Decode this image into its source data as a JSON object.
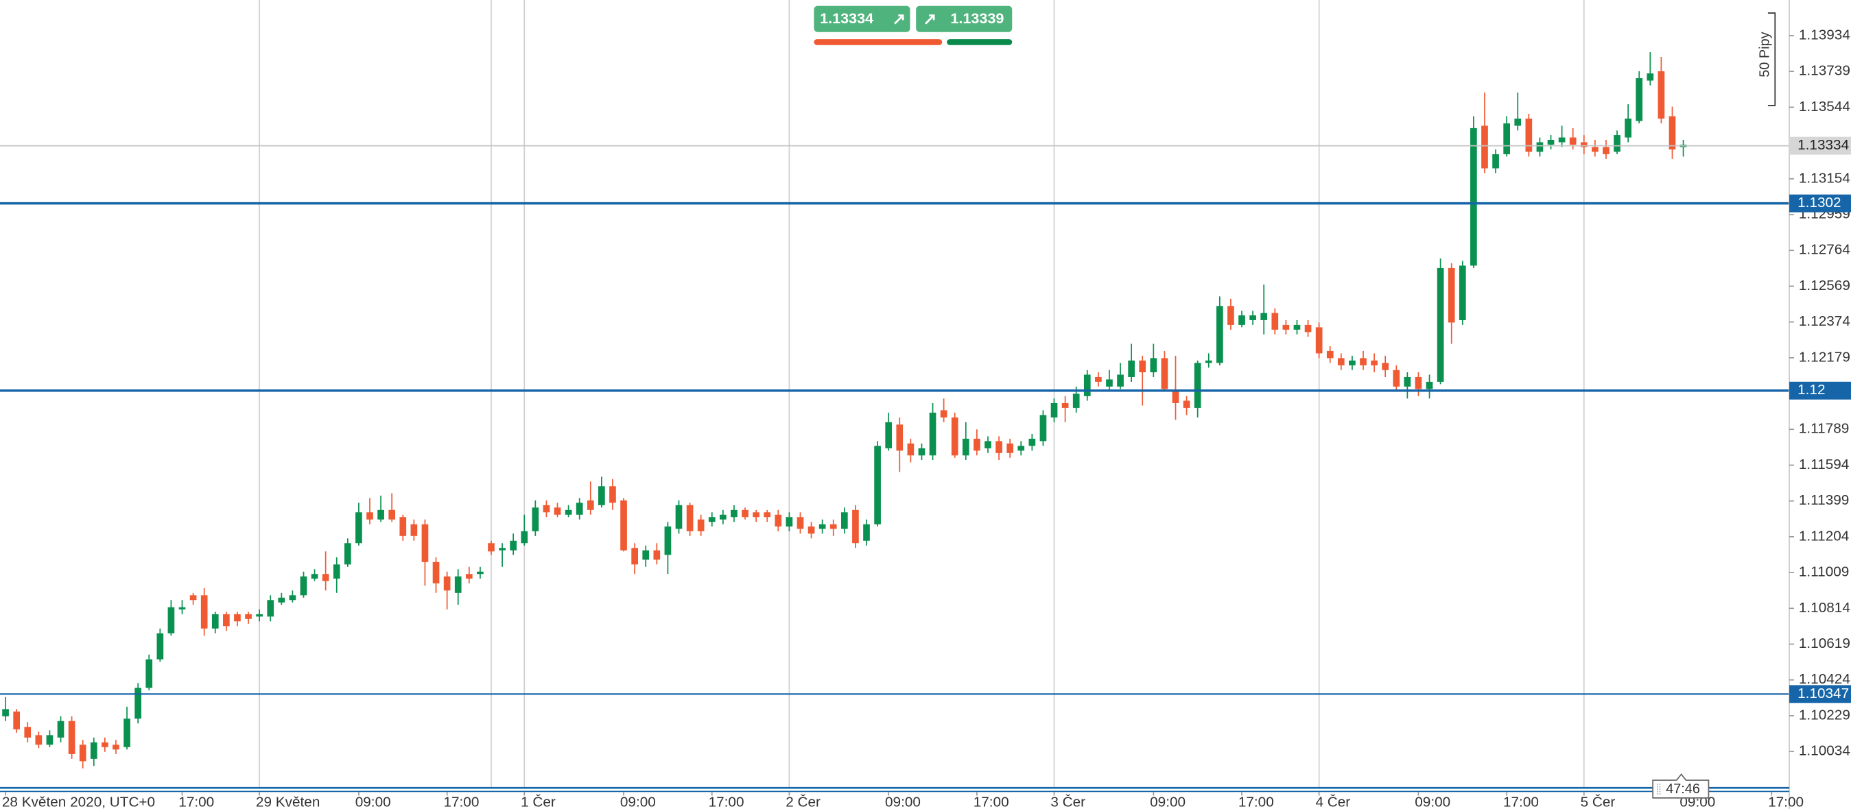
{
  "chart_data": {
    "type": "candlestick",
    "up_color": "#0a9150",
    "down_color": "#f05a33",
    "xlim": [
      -0.5,
      161.6
    ],
    "ylim": [
      1.09839,
      1.14128
    ],
    "xgrid": [
      23,
      44,
      47,
      71,
      95,
      119,
      143
    ],
    "xticks": [
      {
        "value": 0,
        "label": "28 Květen 2020, UTC+0"
      },
      {
        "value": 16,
        "label": "17:00"
      },
      {
        "value": 23,
        "label": "29 Květen"
      },
      {
        "value": 32,
        "label": "09:00"
      },
      {
        "value": 40,
        "label": "17:00"
      },
      {
        "value": 47,
        "label": "1 Čer"
      },
      {
        "value": 56,
        "label": "09:00"
      },
      {
        "value": 64,
        "label": "17:00"
      },
      {
        "value": 71,
        "label": "2 Čer"
      },
      {
        "value": 80,
        "label": "09:00"
      },
      {
        "value": 88,
        "label": "17:00"
      },
      {
        "value": 95,
        "label": "3 Čer"
      },
      {
        "value": 104,
        "label": "09:00"
      },
      {
        "value": 112,
        "label": "17:00"
      },
      {
        "value": 119,
        "label": "4 Čer"
      },
      {
        "value": 128,
        "label": "09:00"
      },
      {
        "value": 136,
        "label": "17:00"
      },
      {
        "value": 143,
        "label": "5 Čer"
      },
      {
        "value": 152,
        "label": "09:00"
      },
      {
        "value": 160,
        "label": "17:00"
      }
    ],
    "yticks": [
      1.13934,
      1.13739,
      1.13544,
      1.13154,
      1.12959,
      1.12764,
      1.12569,
      1.12374,
      1.12179,
      1.11789,
      1.11594,
      1.11399,
      1.11204,
      1.11009,
      1.10814,
      1.10619,
      1.10424,
      1.10229,
      1.10034
    ],
    "hlines": [
      1.1302,
      1.12,
      1.10347
    ],
    "hline_color": "#1565a8",
    "current_price": 1.13334,
    "open": [
      1.10226,
      1.10252,
      1.10168,
      1.10123,
      1.10071,
      1.1011,
      1.102,
      1.10071,
      1.09994,
      1.10084,
      1.10071,
      1.10058,
      1.10213,
      1.10381,
      1.10536,
      1.10678,
      1.10808,
      1.10885,
      1.10885,
      1.10704,
      1.10782,
      1.10782,
      1.10782,
      1.10769,
      1.10769,
      1.10846,
      1.10859,
      1.10885,
      1.10976,
      1.11001,
      1.10976,
      1.11053,
      1.11169,
      1.11337,
      1.11298,
      1.1135,
      1.11311,
      1.11272,
      1.11272,
      1.11066,
      1.10988,
      1.10898,
      1.11001,
      1.11001,
      1.11169,
      1.1113,
      1.1113,
      1.11169,
      1.11234,
      1.11376,
      1.11363,
      1.11324,
      1.11324,
      1.11402,
      1.11376,
      1.11479,
      1.11402,
      1.11143,
      1.11079,
      1.1113,
      1.11105,
      1.11247,
      1.11376,
      1.11298,
      1.11285,
      1.11298,
      1.11311,
      1.1135,
      1.11337,
      1.11337,
      1.11324,
      1.1126,
      1.11311,
      1.1126,
      1.11247,
      1.11272,
      1.11247,
      1.1135,
      1.11182,
      1.11272,
      1.11686,
      1.11815,
      1.11712,
      1.11647,
      1.11647,
      1.11893,
      1.11854,
      1.11647,
      1.11738,
      1.11686,
      1.11725,
      1.11712,
      1.11673,
      1.11699,
      1.11725,
      1.11854,
      1.11932,
      1.11906,
      1.1197,
      1.12074,
      1.12022,
      1.12022,
      1.12074,
      1.12164,
      1.121,
      1.12177,
      1.11996,
      1.11945,
      1.11906,
      1.12151,
      1.12151,
      1.12461,
      1.12358,
      1.12384,
      1.12384,
      1.12423,
      1.12358,
      1.12332,
      1.12358,
      1.12345,
      1.12216,
      1.12177,
      1.12138,
      1.12177,
      1.12164,
      1.12151,
      1.12112,
      1.12022,
      1.12074,
      1.12009,
      1.12048,
      1.12668,
      1.12384,
      1.12681,
      1.13443,
      1.13211,
      1.13288,
      1.13443,
      1.13482,
      1.13301,
      1.1334,
      1.13353,
      1.13379,
      1.13353,
      1.13327,
      1.13327,
      1.13301,
      1.13379,
      1.13469,
      1.13689,
      1.1374,
      1.13495,
      1.13327
    ],
    "high": [
      1.1033,
      1.10265,
      1.10194,
      1.10142,
      1.10149,
      1.10226,
      1.10226,
      1.10097,
      1.1011,
      1.1011,
      1.10097,
      1.10278,
      1.10407,
      1.10562,
      1.10704,
      1.10859,
      1.10859,
      1.10898,
      1.10924,
      1.10795,
      1.10795,
      1.10795,
      1.10795,
      1.10808,
      1.10885,
      1.10898,
      1.10911,
      1.11014,
      1.11027,
      1.11124,
      1.11092,
      1.11195,
      1.11389,
      1.11415,
      1.11428,
      1.11441,
      1.11324,
      1.11298,
      1.11298,
      1.11092,
      1.11014,
      1.11027,
      1.1104,
      1.1104,
      1.11182,
      1.11169,
      1.11221,
      1.11324,
      1.11402,
      1.11402,
      1.11389,
      1.11376,
      1.11415,
      1.11505,
      1.11531,
      1.11518,
      1.11415,
      1.11169,
      1.11156,
      1.11169,
      1.11285,
      1.11402,
      1.11389,
      1.11324,
      1.11337,
      1.1135,
      1.11376,
      1.11363,
      1.1135,
      1.1135,
      1.1135,
      1.11337,
      1.11337,
      1.11285,
      1.11298,
      1.11298,
      1.11363,
      1.11376,
      1.11298,
      1.11725,
      1.1188,
      1.11854,
      1.11738,
      1.11712,
      1.11932,
      1.11957,
      1.1188,
      1.11828,
      1.11789,
      1.11751,
      1.11751,
      1.11738,
      1.11725,
      1.11764,
      1.11893,
      1.11957,
      1.1197,
      1.12022,
      1.12112,
      1.121,
      1.12112,
      1.12151,
      1.12255,
      1.1219,
      1.12255,
      1.12216,
      1.1219,
      1.1197,
      1.12164,
      1.12203,
      1.12513,
      1.125,
      1.12435,
      1.12435,
      1.12578,
      1.12448,
      1.12384,
      1.12384,
      1.12384,
      1.12371,
      1.12242,
      1.12203,
      1.1219,
      1.12216,
      1.12203,
      1.1219,
      1.12138,
      1.121,
      1.121,
      1.12087,
      1.1272,
      1.12694,
      1.12707,
      1.13495,
      1.13624,
      1.13314,
      1.13495,
      1.13624,
      1.13508,
      1.13379,
      1.13392,
      1.13443,
      1.1343,
      1.13392,
      1.13366,
      1.13366,
      1.13417,
      1.1356,
      1.1374,
      1.13844,
      1.13818,
      1.13547,
      1.13366
    ],
    "low": [
      1.102,
      1.10136,
      1.10084,
      1.10052,
      1.10058,
      1.10084,
      1.09994,
      1.09942,
      1.09955,
      1.10032,
      1.1002,
      1.10045,
      1.10187,
      1.10368,
      1.10523,
      1.10665,
      1.10782,
      1.10833,
      1.10665,
      1.10678,
      1.10691,
      1.10717,
      1.1073,
      1.10743,
      1.10743,
      1.10833,
      1.10846,
      1.10872,
      1.10963,
      1.10911,
      1.10898,
      1.1104,
      1.11156,
      1.11272,
      1.11285,
      1.11285,
      1.11182,
      1.11182,
      1.10937,
      1.10898,
      1.10808,
      1.10833,
      1.1095,
      1.10976,
      1.11105,
      1.1104,
      1.11105,
      1.11156,
      1.11208,
      1.11311,
      1.11311,
      1.11311,
      1.11298,
      1.11324,
      1.11363,
      1.1135,
      1.11124,
      1.11001,
      1.1104,
      1.11053,
      1.11001,
      1.11221,
      1.11208,
      1.11208,
      1.1126,
      1.11272,
      1.11285,
      1.11298,
      1.11285,
      1.11285,
      1.11234,
      1.11234,
      1.11221,
      1.11195,
      1.11221,
      1.11208,
      1.11221,
      1.11143,
      1.11156,
      1.1126,
      1.11673,
      1.11557,
      1.11609,
      1.11622,
      1.11622,
      1.11828,
      1.11634,
      1.11622,
      1.11647,
      1.1166,
      1.11622,
      1.11634,
      1.11647,
      1.11673,
      1.11699,
      1.11828,
      1.11828,
      1.1188,
      1.11945,
      1.12022,
      1.11996,
      1.12009,
      1.12048,
      1.11919,
      1.12074,
      1.11996,
      1.11841,
      1.11867,
      1.11854,
      1.12125,
      1.12138,
      1.12332,
      1.12345,
      1.12358,
      1.12306,
      1.12306,
      1.12306,
      1.12306,
      1.12293,
      1.12177,
      1.12151,
      1.12112,
      1.12112,
      1.12112,
      1.121,
      1.12074,
      1.11996,
      1.11957,
      1.1197,
      1.11957,
      1.12035,
      1.12255,
      1.12358,
      1.12668,
      1.13185,
      1.13185,
      1.13275,
      1.13417,
      1.13275,
      1.13275,
      1.13314,
      1.13327,
      1.13314,
      1.13288,
      1.13275,
      1.13262,
      1.13288,
      1.13353,
      1.13456,
      1.13663,
      1.13456,
      1.13262,
      1.13275
    ],
    "close": [
      1.10265,
      1.10155,
      1.1011,
      1.10071,
      1.10123,
      1.102,
      1.1002,
      1.09981,
      1.10084,
      1.10058,
      1.10045,
      1.10213,
      1.10381,
      1.10536,
      1.10678,
      1.1082,
      1.1082,
      1.10859,
      1.10704,
      1.10782,
      1.10717,
      1.10743,
      1.10756,
      1.10782,
      1.10859,
      1.10872,
      1.10885,
      1.10988,
      1.11001,
      1.10963,
      1.11053,
      1.11169,
      1.11337,
      1.11298,
      1.1135,
      1.11298,
      1.11208,
      1.11208,
      1.11066,
      1.1095,
      1.10911,
      1.10988,
      1.10976,
      1.11014,
      1.11124,
      1.11143,
      1.11182,
      1.11234,
      1.11363,
      1.11337,
      1.11324,
      1.1135,
      1.11389,
      1.1135,
      1.11479,
      1.11389,
      1.1113,
      1.11053,
      1.1113,
      1.11079,
      1.1126,
      1.11376,
      1.11234,
      1.11234,
      1.11311,
      1.11324,
      1.1135,
      1.11311,
      1.11311,
      1.11311,
      1.1126,
      1.11311,
      1.11247,
      1.11221,
      1.11272,
      1.11247,
      1.11337,
      1.11169,
      1.11272,
      1.11699,
      1.11828,
      1.11673,
      1.11647,
      1.11686,
      1.1188,
      1.11854,
      1.11647,
      1.11738,
      1.11673,
      1.11725,
      1.1166,
      1.1166,
      1.11699,
      1.11738,
      1.11867,
      1.11932,
      1.11906,
      1.11983,
      1.12087,
      1.12048,
      1.12061,
      1.12087,
      1.12164,
      1.121,
      1.12177,
      1.12009,
      1.11932,
      1.11906,
      1.12151,
      1.12164,
      1.12461,
      1.12358,
      1.1241,
      1.1241,
      1.12423,
      1.12332,
      1.12332,
      1.12358,
      1.12319,
      1.12203,
      1.12177,
      1.12138,
      1.12164,
      1.12138,
      1.12138,
      1.12112,
      1.12022,
      1.12074,
      1.12009,
      1.12048,
      1.12668,
      1.12371,
      1.12681,
      1.1343,
      1.13211,
      1.13288,
      1.13456,
      1.13482,
      1.13301,
      1.13353,
      1.13366,
      1.13379,
      1.1334,
      1.13327,
      1.13301,
      1.13288,
      1.13392,
      1.13482,
      1.13702,
      1.13728,
      1.13482,
      1.13314,
      1.1334
    ]
  },
  "trade_widget": {
    "sell": "1.13334",
    "buy": "1.13339"
  },
  "ruler_label": "50 Pipy",
  "timer": "47:46"
}
